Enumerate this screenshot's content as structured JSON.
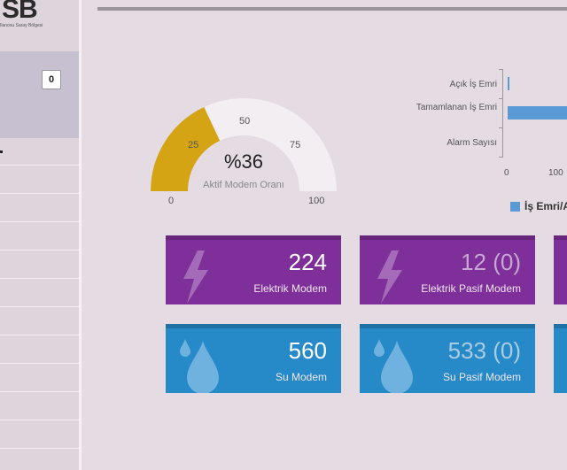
{
  "sidebar": {
    "logo": "SB",
    "logo_sub": "Ilanosu Saray Bölgesi",
    "badge": "0"
  },
  "gauge": {
    "value_text": "%36",
    "value": 36,
    "caption": "Aktif Modem Oranı",
    "ticks": [
      "0",
      "25",
      "50",
      "75",
      "100"
    ],
    "fill_color": "#d4a414",
    "rest_color": "#f2eef2"
  },
  "chart_data": {
    "type": "bar",
    "orientation": "horizontal",
    "categories": [
      "Açık İş Emri",
      "Tamamlanan İş Emri",
      "Alarm Sayısı"
    ],
    "series": [
      {
        "name": "İş Emri/Al",
        "values": [
          3,
          100,
          0
        ]
      }
    ],
    "xticks": [
      "0",
      "100"
    ],
    "legend_text": "İş Emri/Al",
    "legend_placement": "bottom",
    "color": "#5b9bd5"
  },
  "cards": [
    {
      "value": "224",
      "label": "Elektrik Modem",
      "type": "electric"
    },
    {
      "value": "12 (0)",
      "label": "Elektrik Pasif Modem",
      "type": "electric"
    },
    {
      "value": "560",
      "label": "Su Modem",
      "type": "water"
    },
    {
      "value": "533 (0)",
      "label": "Su Pasif Modem",
      "type": "water"
    }
  ]
}
